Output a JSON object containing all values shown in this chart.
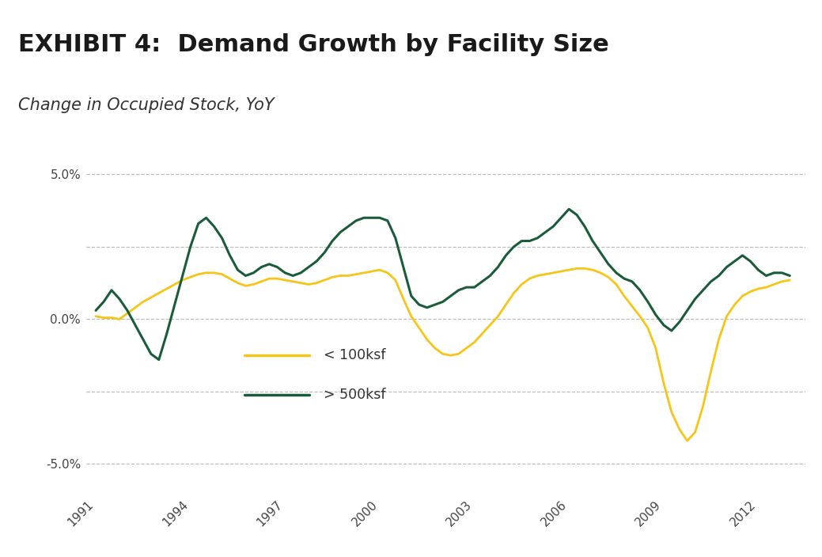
{
  "title": "EXHIBIT 4:  Demand Growth by Facility Size",
  "subtitle": "Change in Occupied Stock, YoY",
  "title_bg_color": "#dcdcdc",
  "bg_color": "#ffffff",
  "title_fontsize": 22,
  "subtitle_fontsize": 15,
  "color_small": "#f5c518",
  "color_large": "#1a5c3a",
  "ylim": [
    -6.0,
    6.5
  ],
  "yticks": [
    -5.0,
    -2.5,
    0.0,
    2.5,
    5.0
  ],
  "ytick_labels": [
    "-5.0%",
    "",
    "0.0%",
    "",
    "5.0%"
  ],
  "xtick_labels": [
    "1991",
    "1994",
    "1997",
    "2000",
    "2003",
    "2006",
    "2009",
    "2012"
  ],
  "legend_labels": [
    "< 100ksf",
    "> 500ksf"
  ],
  "small_x": [
    1991.0,
    1991.25,
    1991.5,
    1991.75,
    1992.0,
    1992.25,
    1992.5,
    1992.75,
    1993.0,
    1993.25,
    1993.5,
    1993.75,
    1994.0,
    1994.25,
    1994.5,
    1994.75,
    1995.0,
    1995.25,
    1995.5,
    1995.75,
    1996.0,
    1996.25,
    1996.5,
    1996.75,
    1997.0,
    1997.25,
    1997.5,
    1997.75,
    1998.0,
    1998.25,
    1998.5,
    1998.75,
    1999.0,
    1999.25,
    1999.5,
    1999.75,
    2000.0,
    2000.25,
    2000.5,
    2000.75,
    2001.0,
    2001.25,
    2001.5,
    2001.75,
    2002.0,
    2002.25,
    2002.5,
    2002.75,
    2003.0,
    2003.25,
    2003.5,
    2003.75,
    2004.0,
    2004.25,
    2004.5,
    2004.75,
    2005.0,
    2005.25,
    2005.5,
    2005.75,
    2006.0,
    2006.25,
    2006.5,
    2006.75,
    2007.0,
    2007.25,
    2007.5,
    2007.75,
    2008.0,
    2008.25,
    2008.5,
    2008.75,
    2009.0,
    2009.25,
    2009.5,
    2009.75,
    2010.0,
    2010.25,
    2010.5,
    2010.75,
    2011.0,
    2011.25,
    2011.5,
    2011.75,
    2012.0,
    2012.25,
    2012.5,
    2012.75,
    2013.0
  ],
  "small_y": [
    0.1,
    0.05,
    0.05,
    0.0,
    0.2,
    0.4,
    0.6,
    0.75,
    0.9,
    1.05,
    1.2,
    1.35,
    1.45,
    1.55,
    1.6,
    1.6,
    1.55,
    1.4,
    1.25,
    1.15,
    1.2,
    1.3,
    1.4,
    1.4,
    1.35,
    1.3,
    1.25,
    1.2,
    1.25,
    1.35,
    1.45,
    1.5,
    1.5,
    1.55,
    1.6,
    1.65,
    1.7,
    1.6,
    1.35,
    0.7,
    0.1,
    -0.3,
    -0.7,
    -1.0,
    -1.2,
    -1.25,
    -1.2,
    -1.0,
    -0.8,
    -0.5,
    -0.2,
    0.1,
    0.5,
    0.9,
    1.2,
    1.4,
    1.5,
    1.55,
    1.6,
    1.65,
    1.7,
    1.75,
    1.75,
    1.7,
    1.6,
    1.45,
    1.2,
    0.8,
    0.45,
    0.1,
    -0.3,
    -1.0,
    -2.2,
    -3.2,
    -3.8,
    -4.2,
    -3.9,
    -3.0,
    -1.8,
    -0.7,
    0.1,
    0.5,
    0.8,
    0.95,
    1.05,
    1.1,
    1.2,
    1.3,
    1.35
  ],
  "large_x": [
    1991.0,
    1991.25,
    1991.5,
    1991.75,
    1992.0,
    1992.25,
    1992.5,
    1992.75,
    1993.0,
    1993.25,
    1993.5,
    1993.75,
    1994.0,
    1994.25,
    1994.5,
    1994.75,
    1995.0,
    1995.25,
    1995.5,
    1995.75,
    1996.0,
    1996.25,
    1996.5,
    1996.75,
    1997.0,
    1997.25,
    1997.5,
    1997.75,
    1998.0,
    1998.25,
    1998.5,
    1998.75,
    1999.0,
    1999.25,
    1999.5,
    1999.75,
    2000.0,
    2000.25,
    2000.5,
    2000.75,
    2001.0,
    2001.25,
    2001.5,
    2001.75,
    2002.0,
    2002.25,
    2002.5,
    2002.75,
    2003.0,
    2003.25,
    2003.5,
    2003.75,
    2004.0,
    2004.25,
    2004.5,
    2004.75,
    2005.0,
    2005.25,
    2005.5,
    2005.75,
    2006.0,
    2006.25,
    2006.5,
    2006.75,
    2007.0,
    2007.25,
    2007.5,
    2007.75,
    2008.0,
    2008.25,
    2008.5,
    2008.75,
    2009.0,
    2009.25,
    2009.5,
    2009.75,
    2010.0,
    2010.25,
    2010.5,
    2010.75,
    2011.0,
    2011.25,
    2011.5,
    2011.75,
    2012.0,
    2012.25,
    2012.5,
    2012.75,
    2013.0
  ],
  "large_y": [
    0.3,
    0.6,
    1.0,
    0.7,
    0.3,
    -0.2,
    -0.7,
    -1.2,
    -1.4,
    -0.5,
    0.5,
    1.5,
    2.5,
    3.3,
    3.5,
    3.2,
    2.8,
    2.2,
    1.7,
    1.5,
    1.6,
    1.8,
    1.9,
    1.8,
    1.6,
    1.5,
    1.6,
    1.8,
    2.0,
    2.3,
    2.7,
    3.0,
    3.2,
    3.4,
    3.5,
    3.5,
    3.5,
    3.4,
    2.8,
    1.8,
    0.8,
    0.5,
    0.4,
    0.5,
    0.6,
    0.8,
    1.0,
    1.1,
    1.1,
    1.3,
    1.5,
    1.8,
    2.2,
    2.5,
    2.7,
    2.7,
    2.8,
    3.0,
    3.2,
    3.5,
    3.8,
    3.6,
    3.2,
    2.7,
    2.3,
    1.9,
    1.6,
    1.4,
    1.3,
    1.0,
    0.6,
    0.15,
    -0.2,
    -0.4,
    -0.1,
    0.3,
    0.7,
    1.0,
    1.3,
    1.5,
    1.8,
    2.0,
    2.2,
    2.0,
    1.7,
    1.5,
    1.6,
    1.6,
    1.5
  ]
}
